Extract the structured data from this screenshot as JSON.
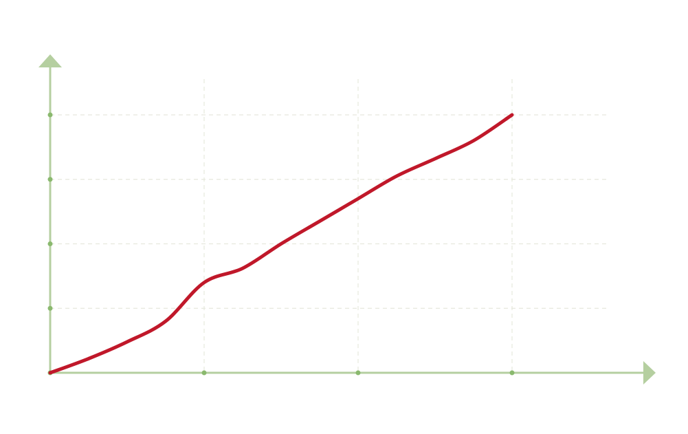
{
  "chart_data": {
    "type": "line",
    "title": "",
    "xlabel": "",
    "ylabel": "",
    "x_ticks": [
      0,
      1,
      2,
      3
    ],
    "y_ticks": [
      0,
      1,
      2,
      3,
      4
    ],
    "xlim": [
      0,
      3.8
    ],
    "ylim": [
      0,
      4.5
    ],
    "grid": true,
    "legend": "none",
    "series": [
      {
        "x": [
          0,
          0.25,
          0.5,
          0.75,
          1.0,
          1.25,
          1.5,
          1.75,
          2.0,
          2.25,
          2.5,
          2.75,
          3.0
        ],
        "y": [
          0,
          0.22,
          0.48,
          0.8,
          1.4,
          1.62,
          2.0,
          2.35,
          2.7,
          3.05,
          3.32,
          3.6,
          4.0
        ],
        "color": "#c0182a"
      }
    ],
    "colors": {
      "axis": "#b5cfa0",
      "tick_dot": "#8ab96e",
      "grid": "#e6e8dd",
      "line": "#c0182a"
    }
  }
}
